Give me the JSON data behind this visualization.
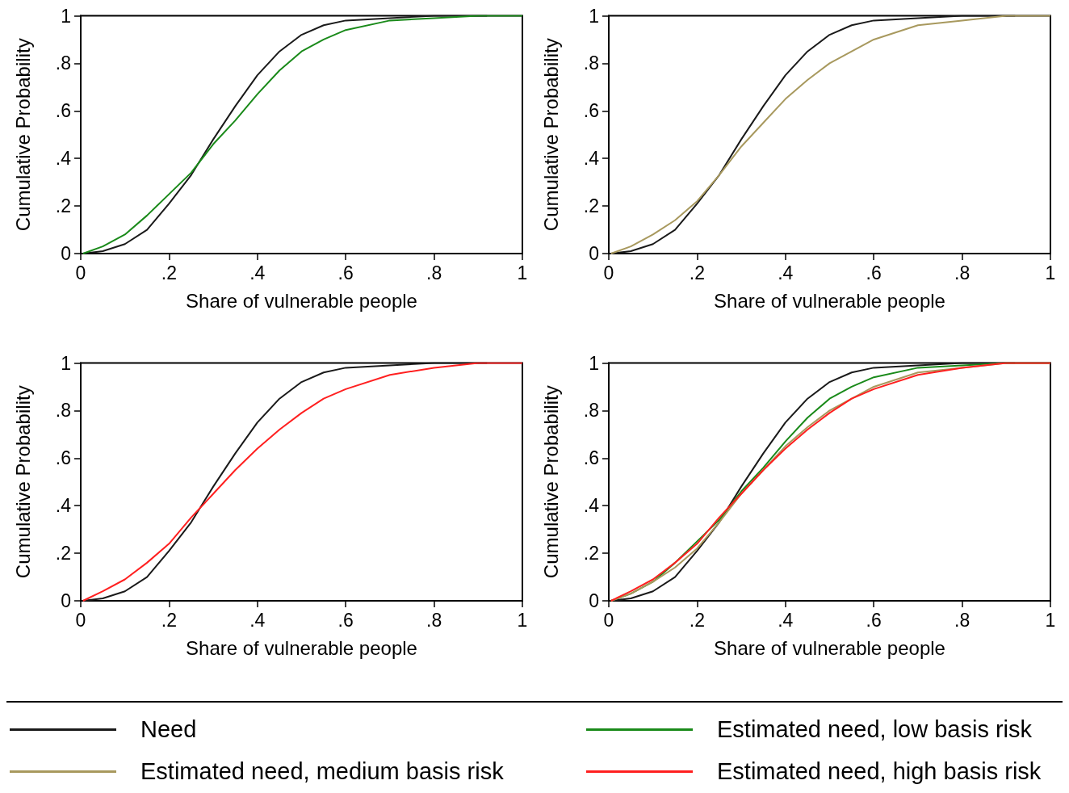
{
  "chart_data": [
    {
      "type": "line",
      "xlabel": "Share of vulnerable people",
      "ylabel": "Cumulative Probability",
      "marker": "none",
      "legend": "bottom",
      "xlim": [
        0,
        1
      ],
      "ylim": [
        0,
        1
      ],
      "xticks": [
        {
          "value": 0,
          "label": "0"
        },
        {
          "value": 0.2,
          "label": ".2"
        },
        {
          "value": 0.4,
          "label": ".4"
        },
        {
          "value": 0.6,
          "label": ".6"
        },
        {
          "value": 0.8,
          "label": ".8"
        },
        {
          "value": 1,
          "label": "1"
        }
      ],
      "yticks": [
        {
          "value": 0,
          "label": "0"
        },
        {
          "value": 0.2,
          "label": ".2"
        },
        {
          "value": 0.4,
          "label": ".4"
        },
        {
          "value": 0.6,
          "label": ".6"
        },
        {
          "value": 0.8,
          "label": ".8"
        },
        {
          "value": 1,
          "label": "1"
        }
      ],
      "series": [
        {
          "name": "Need",
          "color": "#1a1a1a",
          "x": [
            0.005,
            0.05,
            0.1,
            0.15,
            0.2,
            0.25,
            0.3,
            0.35,
            0.4,
            0.45,
            0.5,
            0.55,
            0.6,
            0.7,
            0.8,
            0.92
          ],
          "values": [
            0,
            0.01,
            0.04,
            0.1,
            0.21,
            0.33,
            0.48,
            0.62,
            0.75,
            0.85,
            0.92,
            0.96,
            0.98,
            0.99,
            1,
            1
          ]
        },
        {
          "name": "Estimated need, low basis risk",
          "color": "#1a8a1a",
          "x": [
            0.005,
            0.05,
            0.1,
            0.15,
            0.2,
            0.25,
            0.3,
            0.35,
            0.4,
            0.45,
            0.5,
            0.55,
            0.6,
            0.7,
            0.8,
            0.9,
            1
          ],
          "values": [
            0,
            0.03,
            0.08,
            0.16,
            0.25,
            0.34,
            0.46,
            0.56,
            0.67,
            0.77,
            0.85,
            0.9,
            0.94,
            0.98,
            0.99,
            1,
            1
          ]
        }
      ]
    },
    {
      "type": "line",
      "xlabel": "Share of vulnerable people",
      "ylabel": "Cumulative Probability",
      "marker": "none",
      "legend": "bottom",
      "xlim": [
        0,
        1
      ],
      "ylim": [
        0,
        1
      ],
      "xticks": [
        {
          "value": 0,
          "label": "0"
        },
        {
          "value": 0.2,
          "label": ".2"
        },
        {
          "value": 0.4,
          "label": ".4"
        },
        {
          "value": 0.6,
          "label": ".6"
        },
        {
          "value": 0.8,
          "label": ".8"
        },
        {
          "value": 1,
          "label": "1"
        }
      ],
      "yticks": [
        {
          "value": 0,
          "label": "0"
        },
        {
          "value": 0.2,
          "label": ".2"
        },
        {
          "value": 0.4,
          "label": ".4"
        },
        {
          "value": 0.6,
          "label": ".6"
        },
        {
          "value": 0.8,
          "label": ".8"
        },
        {
          "value": 1,
          "label": "1"
        }
      ],
      "series": [
        {
          "name": "Need",
          "color": "#1a1a1a",
          "x": [
            0.005,
            0.05,
            0.1,
            0.15,
            0.2,
            0.25,
            0.3,
            0.35,
            0.4,
            0.45,
            0.5,
            0.55,
            0.6,
            0.7,
            0.8,
            0.92
          ],
          "values": [
            0,
            0.01,
            0.04,
            0.1,
            0.21,
            0.33,
            0.48,
            0.62,
            0.75,
            0.85,
            0.92,
            0.96,
            0.98,
            0.99,
            1,
            1
          ]
        },
        {
          "name": "Estimated need, medium basis risk",
          "color": "#a8995e",
          "x": [
            0.005,
            0.05,
            0.1,
            0.15,
            0.2,
            0.25,
            0.3,
            0.35,
            0.4,
            0.45,
            0.5,
            0.55,
            0.6,
            0.7,
            0.8,
            0.9,
            1
          ],
          "values": [
            0,
            0.03,
            0.08,
            0.14,
            0.22,
            0.33,
            0.45,
            0.55,
            0.65,
            0.73,
            0.8,
            0.85,
            0.9,
            0.96,
            0.98,
            1,
            1
          ]
        }
      ]
    },
    {
      "type": "line",
      "xlabel": "Share of vulnerable people",
      "ylabel": "Cumulative Probability",
      "marker": "none",
      "legend": "bottom",
      "xlim": [
        0,
        1
      ],
      "ylim": [
        0,
        1
      ],
      "xticks": [
        {
          "value": 0,
          "label": "0"
        },
        {
          "value": 0.2,
          "label": ".2"
        },
        {
          "value": 0.4,
          "label": ".4"
        },
        {
          "value": 0.6,
          "label": ".6"
        },
        {
          "value": 0.8,
          "label": ".8"
        },
        {
          "value": 1,
          "label": "1"
        }
      ],
      "yticks": [
        {
          "value": 0,
          "label": "0"
        },
        {
          "value": 0.2,
          "label": ".2"
        },
        {
          "value": 0.4,
          "label": ".4"
        },
        {
          "value": 0.6,
          "label": ".6"
        },
        {
          "value": 0.8,
          "label": ".8"
        },
        {
          "value": 1,
          "label": "1"
        }
      ],
      "series": [
        {
          "name": "Need",
          "color": "#1a1a1a",
          "x": [
            0.005,
            0.05,
            0.1,
            0.15,
            0.2,
            0.25,
            0.3,
            0.35,
            0.4,
            0.45,
            0.5,
            0.55,
            0.6,
            0.7,
            0.8,
            0.92
          ],
          "values": [
            0,
            0.01,
            0.04,
            0.1,
            0.21,
            0.33,
            0.48,
            0.62,
            0.75,
            0.85,
            0.92,
            0.96,
            0.98,
            0.99,
            1,
            1
          ]
        },
        {
          "name": "Estimated need, high basis risk",
          "color": "#ff2020",
          "x": [
            0.005,
            0.05,
            0.1,
            0.15,
            0.2,
            0.25,
            0.3,
            0.35,
            0.4,
            0.45,
            0.5,
            0.55,
            0.6,
            0.7,
            0.8,
            0.9,
            1
          ],
          "values": [
            0,
            0.04,
            0.09,
            0.16,
            0.24,
            0.35,
            0.45,
            0.55,
            0.64,
            0.72,
            0.79,
            0.85,
            0.89,
            0.95,
            0.98,
            1,
            1
          ]
        }
      ]
    },
    {
      "type": "line",
      "xlabel": "Share of vulnerable people",
      "ylabel": "Cumulative Probability",
      "marker": "none",
      "legend": "bottom",
      "xlim": [
        0,
        1
      ],
      "ylim": [
        0,
        1
      ],
      "xticks": [
        {
          "value": 0,
          "label": "0"
        },
        {
          "value": 0.2,
          "label": ".2"
        },
        {
          "value": 0.4,
          "label": ".4"
        },
        {
          "value": 0.6,
          "label": ".6"
        },
        {
          "value": 0.8,
          "label": ".8"
        },
        {
          "value": 1,
          "label": "1"
        }
      ],
      "yticks": [
        {
          "value": 0,
          "label": "0"
        },
        {
          "value": 0.2,
          "label": ".2"
        },
        {
          "value": 0.4,
          "label": ".4"
        },
        {
          "value": 0.6,
          "label": ".6"
        },
        {
          "value": 0.8,
          "label": ".8"
        },
        {
          "value": 1,
          "label": "1"
        }
      ],
      "series": [
        {
          "name": "Need",
          "color": "#1a1a1a",
          "x": [
            0.005,
            0.05,
            0.1,
            0.15,
            0.2,
            0.25,
            0.3,
            0.35,
            0.4,
            0.45,
            0.5,
            0.55,
            0.6,
            0.7,
            0.8,
            0.92
          ],
          "values": [
            0,
            0.01,
            0.04,
            0.1,
            0.21,
            0.33,
            0.48,
            0.62,
            0.75,
            0.85,
            0.92,
            0.96,
            0.98,
            0.99,
            1,
            1
          ]
        },
        {
          "name": "Estimated need, low basis risk",
          "color": "#1a8a1a",
          "x": [
            0.005,
            0.05,
            0.1,
            0.15,
            0.2,
            0.25,
            0.3,
            0.35,
            0.4,
            0.45,
            0.5,
            0.55,
            0.6,
            0.7,
            0.8,
            0.9,
            1
          ],
          "values": [
            0,
            0.03,
            0.08,
            0.16,
            0.25,
            0.34,
            0.46,
            0.56,
            0.67,
            0.77,
            0.85,
            0.9,
            0.94,
            0.98,
            0.99,
            1,
            1
          ]
        },
        {
          "name": "Estimated need, medium basis risk",
          "color": "#a8995e",
          "x": [
            0.005,
            0.05,
            0.1,
            0.15,
            0.2,
            0.25,
            0.3,
            0.35,
            0.4,
            0.45,
            0.5,
            0.55,
            0.6,
            0.7,
            0.8,
            0.9,
            1
          ],
          "values": [
            0,
            0.03,
            0.08,
            0.14,
            0.22,
            0.33,
            0.45,
            0.55,
            0.65,
            0.73,
            0.8,
            0.85,
            0.9,
            0.96,
            0.98,
            1,
            1
          ]
        },
        {
          "name": "Estimated need, high basis risk",
          "color": "#ff2020",
          "x": [
            0.005,
            0.05,
            0.1,
            0.15,
            0.2,
            0.25,
            0.3,
            0.35,
            0.4,
            0.45,
            0.5,
            0.55,
            0.6,
            0.7,
            0.8,
            0.9,
            1
          ],
          "values": [
            0,
            0.04,
            0.09,
            0.16,
            0.24,
            0.35,
            0.45,
            0.55,
            0.64,
            0.72,
            0.79,
            0.85,
            0.89,
            0.95,
            0.98,
            1,
            1
          ]
        }
      ]
    }
  ]
}
